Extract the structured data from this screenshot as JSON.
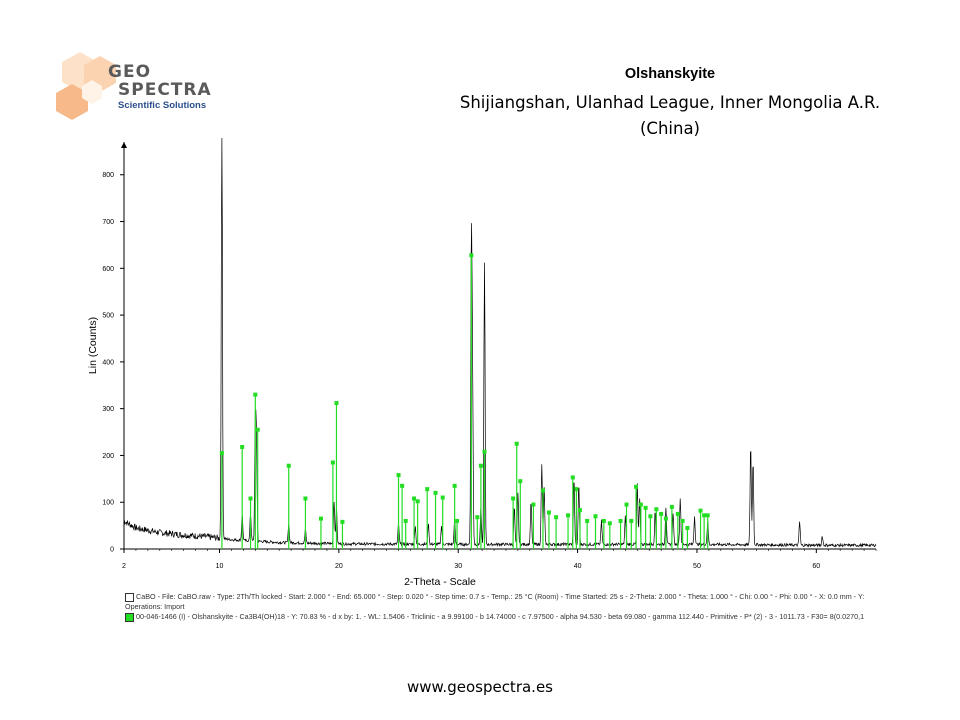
{
  "logo": {
    "line1": "GEO",
    "line2": "SPECTRA",
    "subtitle": "Scientific Solutions"
  },
  "title": {
    "mineral": "Olshanskyite",
    "location_line1": "Shijiangshan, Ulanhad League, Inner Mongolia A.R.",
    "location_line2": "(China)"
  },
  "footer": {
    "url": "www.geospectra.es"
  },
  "legend": {
    "pattern_line1": "CaBO - File: CaBO.raw - Type: 2Th/Th locked - Start: 2.000 ° - End: 65.000 ° - Step: 0.020 ° - Step time: 0.7 s - Temp.: 25 °C (Room) - Time Started: 25 s - 2-Theta: 2.000 ° - Theta: 1.000 ° - Chi: 0.00 ° - Phi: 0.00 ° - X: 0.0 mm - Y:",
    "pattern_line2": "Operations: Import",
    "reference": "00-046-1466 (I) - Olshanskyite - Ca3B4(OH)18 - Y: 70.83 % - d x by: 1. - WL: 1.5406 - Triclinic - a 9.99100 - b 14.74000 - c 7.97500 - alpha 94.530 - beta 69.080 - gamma 112.440 - Primitive - P* (2) - 3 - 1011.73 - F30=  8(0.0270,1"
  },
  "colors": {
    "measured": "#000000",
    "reference": "#22dd22",
    "axis": "#000000"
  },
  "chart_data": {
    "type": "line",
    "xlabel": "2-Theta - Scale",
    "ylabel": "Lin (Counts)",
    "xlim": [
      2,
      65
    ],
    "ylim": [
      0,
      870
    ],
    "x_ticks": [
      2,
      10,
      20,
      30,
      40,
      50,
      60
    ],
    "y_ticks": [
      0,
      100,
      200,
      300,
      400,
      500,
      600,
      700,
      800
    ],
    "series": [
      {
        "name": "CaBO",
        "style": "measured-pattern",
        "background": [
          [
            2,
            60
          ],
          [
            3,
            45
          ],
          [
            5,
            35
          ],
          [
            7,
            30
          ],
          [
            9,
            26
          ],
          [
            11,
            20
          ],
          [
            15,
            14
          ],
          [
            20,
            11
          ],
          [
            30,
            10
          ],
          [
            40,
            10
          ],
          [
            50,
            10
          ],
          [
            60,
            8
          ],
          [
            65,
            8
          ]
        ],
        "peaks": [
          [
            10.2,
            880
          ],
          [
            11.9,
            55
          ],
          [
            12.6,
            60
          ],
          [
            13.0,
            250
          ],
          [
            13.1,
            200
          ],
          [
            15.8,
            40
          ],
          [
            17.2,
            30
          ],
          [
            19.6,
            90
          ],
          [
            19.8,
            80
          ],
          [
            25.0,
            45
          ],
          [
            26.4,
            40
          ],
          [
            27.5,
            45
          ],
          [
            28.6,
            40
          ],
          [
            29.7,
            50
          ],
          [
            31.1,
            640
          ],
          [
            31.2,
            350
          ],
          [
            31.9,
            80
          ],
          [
            32.2,
            600
          ],
          [
            34.7,
            80
          ],
          [
            35.0,
            110
          ],
          [
            36.1,
            90
          ],
          [
            37.0,
            170
          ],
          [
            37.2,
            120
          ],
          [
            39.7,
            140
          ],
          [
            40.1,
            130
          ],
          [
            42.0,
            50
          ],
          [
            44.0,
            60
          ],
          [
            45.0,
            130
          ],
          [
            45.2,
            100
          ],
          [
            46.5,
            70
          ],
          [
            47.4,
            80
          ],
          [
            48.0,
            65
          ],
          [
            48.6,
            100
          ],
          [
            49.8,
            60
          ],
          [
            50.9,
            50
          ],
          [
            54.5,
            215
          ],
          [
            54.7,
            180
          ],
          [
            58.6,
            50
          ],
          [
            60.5,
            20
          ]
        ]
      },
      {
        "name": "Olshanskyite",
        "style": "reference-sticks",
        "sticks": [
          [
            10.2,
            205
          ],
          [
            11.9,
            218
          ],
          [
            12.6,
            108
          ],
          [
            13.0,
            330
          ],
          [
            13.2,
            255
          ],
          [
            15.8,
            178
          ],
          [
            17.2,
            108
          ],
          [
            18.5,
            65
          ],
          [
            19.5,
            185
          ],
          [
            19.8,
            312
          ],
          [
            20.3,
            58
          ],
          [
            25.0,
            158
          ],
          [
            25.3,
            135
          ],
          [
            25.6,
            60
          ],
          [
            26.3,
            108
          ],
          [
            26.6,
            102
          ],
          [
            27.4,
            128
          ],
          [
            28.1,
            120
          ],
          [
            28.7,
            110
          ],
          [
            29.7,
            135
          ],
          [
            29.9,
            60
          ],
          [
            31.1,
            628
          ],
          [
            31.6,
            68
          ],
          [
            31.9,
            178
          ],
          [
            32.2,
            208
          ],
          [
            34.6,
            108
          ],
          [
            34.9,
            225
          ],
          [
            35.2,
            145
          ],
          [
            36.3,
            95
          ],
          [
            37.1,
            125
          ],
          [
            37.6,
            78
          ],
          [
            38.2,
            68
          ],
          [
            39.2,
            72
          ],
          [
            39.6,
            153
          ],
          [
            39.9,
            128
          ],
          [
            40.2,
            83
          ],
          [
            40.8,
            60
          ],
          [
            41.5,
            70
          ],
          [
            42.2,
            60
          ],
          [
            42.7,
            55
          ],
          [
            43.6,
            60
          ],
          [
            44.1,
            95
          ],
          [
            44.5,
            60
          ],
          [
            44.9,
            133
          ],
          [
            45.3,
            95
          ],
          [
            45.7,
            88
          ],
          [
            46.1,
            70
          ],
          [
            46.6,
            85
          ],
          [
            47.0,
            75
          ],
          [
            47.4,
            65
          ],
          [
            47.9,
            90
          ],
          [
            48.4,
            75
          ],
          [
            48.8,
            60
          ],
          [
            49.2,
            45
          ],
          [
            50.3,
            82
          ],
          [
            50.6,
            72
          ],
          [
            50.9,
            72
          ]
        ]
      }
    ]
  }
}
